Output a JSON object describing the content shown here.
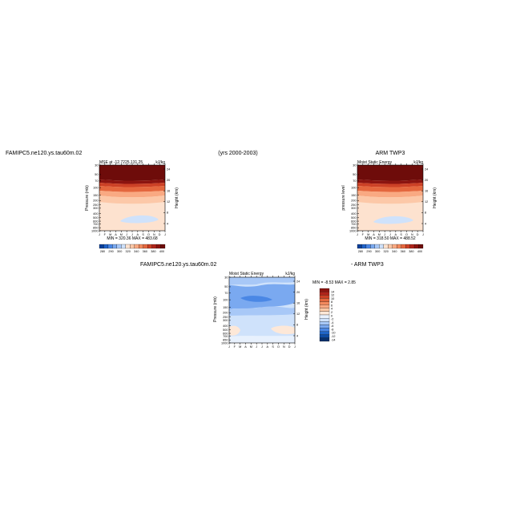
{
  "page": {
    "left_title": "FAMIPC5.ne120.ys.tau60m.02",
    "center_title": "(yrs 2000-2003)",
    "right_title": "ARM TWP3",
    "bottom_left_title": "FAMIPC5.ne120.ys.tau60m.02",
    "bottom_right_title": "- ARM TWP3"
  },
  "colors": {
    "mse_levels": [
      "#0a3f9a",
      "#1f62c9",
      "#4a87e5",
      "#7aa9f0",
      "#a8c8f7",
      "#cfe2fb",
      "#fde2cf",
      "#fcc8a8",
      "#f9a982",
      "#f28a5e",
      "#e4673e",
      "#cc4126",
      "#b0241a",
      "#8b1410",
      "#6e0c0a"
    ],
    "diff_levels": [
      "#08306b",
      "#0d4ba3",
      "#2166c7",
      "#4a87e5",
      "#7aa9f0",
      "#a8c8f7",
      "#cfe2fb",
      "#e8f1fd",
      "#fde8d8",
      "#fcc9a6",
      "#f9a982",
      "#f28a5e",
      "#e4673e",
      "#cc4126",
      "#b0241a",
      "#8b1410"
    ]
  },
  "chart_data": [
    {
      "type": "heatmap",
      "name": "model",
      "title_left": "MSE at -12.7225,131.25",
      "title_right": "kJ/kg",
      "ylabel": "Pressure (mb)",
      "ylabel_right": "Height (km)",
      "months": [
        "J",
        "F",
        "M",
        "A",
        "M",
        "J",
        "J",
        "A",
        "S",
        "O",
        "N",
        "D",
        "J"
      ],
      "pressure_ticks": [
        "30",
        "50",
        "70",
        "100",
        "150",
        "200",
        "250",
        "300",
        "400",
        "500",
        "600",
        "700",
        "850",
        "1000"
      ],
      "height_ticks": [
        "24",
        "20",
        "16",
        "12",
        "8",
        "4"
      ],
      "stats": "MIN = 320.36  MAX = 483.68",
      "colorbar_labels": [
        "280",
        "290",
        "300",
        "320",
        "340",
        "360",
        "380",
        "400"
      ],
      "ylim_pressure": [
        1000,
        30
      ],
      "value_range": [
        320.36,
        483.68
      ]
    },
    {
      "type": "heatmap",
      "name": "obs",
      "title_left": "Moist Static Energy",
      "title_right": "kJ/kg",
      "ylabel": "pressure level",
      "ylabel_right": "Height (km)",
      "months": [
        "J",
        "F",
        "M",
        "A",
        "M",
        "J",
        "J",
        "A",
        "S",
        "O",
        "N",
        "D",
        "J"
      ],
      "pressure_ticks": [
        "30",
        "50",
        "70",
        "100",
        "150",
        "200",
        "250",
        "300",
        "400",
        "500",
        "600",
        "700",
        "850",
        "1000"
      ],
      "height_ticks": [
        "24",
        "20",
        "16",
        "12",
        "8",
        "4"
      ],
      "stats": "MIN = 318.50  MAX = 488.52",
      "colorbar_labels": [
        "280",
        "290",
        "300",
        "320",
        "340",
        "360",
        "380",
        "400"
      ],
      "ylim_pressure": [
        1000,
        30
      ],
      "value_range": [
        318.5,
        488.52
      ]
    },
    {
      "type": "heatmap",
      "name": "difference",
      "title_left": "Moist Static Energy",
      "title_right": "kJ/kg",
      "ylabel": "Pressure (mb)",
      "ylabel_right": "Height (km)",
      "months": [
        "J",
        "F",
        "M",
        "A",
        "M",
        "J",
        "J",
        "A",
        "S",
        "O",
        "N",
        "D",
        "J"
      ],
      "pressure_ticks": [
        "30",
        "50",
        "70",
        "100",
        "150",
        "200",
        "250",
        "300",
        "400",
        "500",
        "600",
        "700",
        "850",
        "1000"
      ],
      "height_ticks": [
        "24",
        "20",
        "16",
        "12",
        "8",
        "4"
      ],
      "stats": "MIN = -8.53  MAX = 2.85",
      "colorbar_labels": [
        "14",
        "12",
        "10",
        "8",
        "6",
        "4",
        "2",
        "0",
        "-2",
        "-4",
        "-6",
        "-8",
        "-10",
        "-12",
        "-14"
      ],
      "ylim_pressure": [
        1000,
        30
      ],
      "value_range": [
        -8.53,
        2.85
      ]
    }
  ]
}
